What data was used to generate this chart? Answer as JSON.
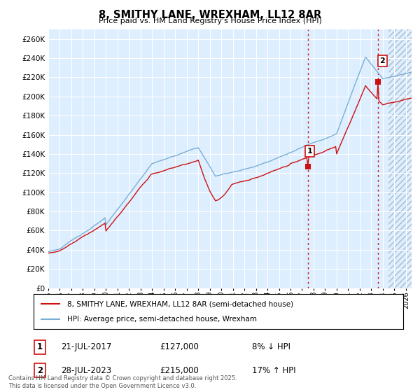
{
  "title": "8, SMITHY LANE, WREXHAM, LL12 8AR",
  "subtitle": "Price paid vs. HM Land Registry's House Price Index (HPI)",
  "ylim": [
    0,
    270000
  ],
  "yticks": [
    0,
    20000,
    40000,
    60000,
    80000,
    100000,
    120000,
    140000,
    160000,
    180000,
    200000,
    220000,
    240000,
    260000
  ],
  "xlim_start": 1995,
  "xlim_end": 2026.5,
  "hpi_color": "#7aafd4",
  "price_color": "#cc1111",
  "vline_color": "#cc1111",
  "plot_bg": "#ddeeff",
  "grid_color": "#b8cfe8",
  "transaction1_year": 2017.54,
  "transaction1_price": 127000,
  "transaction1_label": "1",
  "transaction2_year": 2023.57,
  "transaction2_price": 215000,
  "transaction2_label": "2",
  "legend_line1": "8, SMITHY LANE, WREXHAM, LL12 8AR (semi-detached house)",
  "legend_line2": "HPI: Average price, semi-detached house, Wrexham",
  "annotation1_date": "21-JUL-2017",
  "annotation1_price": "£127,000",
  "annotation1_hpi": "8% ↓ HPI",
  "annotation2_date": "28-JUL-2023",
  "annotation2_price": "£215,000",
  "annotation2_hpi": "17% ↑ HPI",
  "footer": "Contains HM Land Registry data © Crown copyright and database right 2025.\nThis data is licensed under the Open Government Licence v3.0.",
  "hatch_start": 2024.5
}
